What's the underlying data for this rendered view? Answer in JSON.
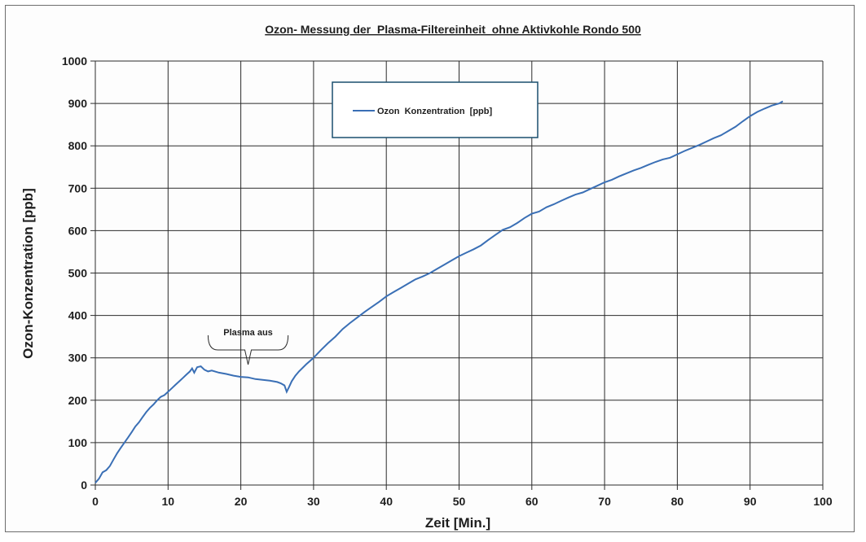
{
  "chart_data": {
    "type": "line",
    "title": "Ozon- Messung der  Plasma-Filtereinheit  ohne Aktivkohle Rondo 500",
    "xlabel": "Zeit [Min.]",
    "ylabel": "Ozon-Konzentration [ppb]",
    "xlim": [
      0,
      100
    ],
    "ylim": [
      0,
      1000
    ],
    "xticks": [
      "0",
      "10",
      "20",
      "30",
      "40",
      "50",
      "60",
      "70",
      "80",
      "90",
      "100"
    ],
    "yticks": [
      "0",
      "100",
      "200",
      "300",
      "400",
      "500",
      "600",
      "700",
      "800",
      "900",
      "1000"
    ],
    "grid": true,
    "legend_position": "top-center",
    "series": [
      {
        "name": "Ozon  Konzentration  [ppb]",
        "color": "#3a6fb5",
        "x": [
          0,
          0.5,
          1,
          1.5,
          2,
          2.5,
          3,
          3.5,
          4,
          4.5,
          5,
          5.5,
          6,
          6.5,
          7,
          7.5,
          8,
          8.5,
          9,
          9.5,
          10,
          10.5,
          11,
          11.5,
          12,
          12.5,
          13,
          13.3,
          13.6,
          14,
          14.5,
          15,
          15.5,
          16,
          17,
          18,
          19,
          20,
          21,
          22,
          23,
          24,
          25,
          25.5,
          26,
          26.3,
          26.6,
          27,
          27.5,
          28,
          29,
          30,
          31,
          32,
          33,
          34,
          35,
          36,
          37,
          38,
          39,
          40,
          41,
          42,
          43,
          44,
          45,
          46,
          47,
          48,
          49,
          50,
          51,
          52,
          53,
          54,
          55,
          56,
          57,
          58,
          59,
          60,
          61,
          62,
          63,
          64,
          65,
          66,
          67,
          68,
          69,
          70,
          71,
          72,
          73,
          74,
          75,
          76,
          77,
          78,
          79,
          80,
          81,
          82,
          83,
          84,
          85,
          86,
          87,
          88,
          89,
          90,
          91,
          92,
          93,
          94,
          94.5
        ],
        "y": [
          5,
          15,
          30,
          35,
          45,
          60,
          75,
          88,
          100,
          112,
          125,
          138,
          148,
          160,
          172,
          182,
          190,
          200,
          208,
          212,
          220,
          228,
          236,
          244,
          252,
          260,
          268,
          275,
          265,
          278,
          280,
          272,
          268,
          270,
          265,
          262,
          258,
          255,
          254,
          250,
          248,
          246,
          243,
          240,
          235,
          220,
          230,
          245,
          258,
          268,
          285,
          300,
          318,
          335,
          350,
          368,
          382,
          395,
          408,
          420,
          432,
          445,
          455,
          465,
          475,
          485,
          492,
          500,
          510,
          520,
          530,
          540,
          548,
          556,
          565,
          578,
          590,
          602,
          608,
          618,
          630,
          640,
          645,
          655,
          662,
          670,
          678,
          685,
          690,
          698,
          706,
          714,
          720,
          728,
          735,
          742,
          748,
          755,
          762,
          768,
          772,
          780,
          788,
          795,
          802,
          810,
          818,
          825,
          835,
          845,
          858,
          870,
          880,
          888,
          895,
          900,
          905
        ]
      }
    ],
    "annotations": [
      {
        "text": "Plasma aus",
        "x_start": 15.5,
        "x_end": 26.5
      }
    ]
  }
}
